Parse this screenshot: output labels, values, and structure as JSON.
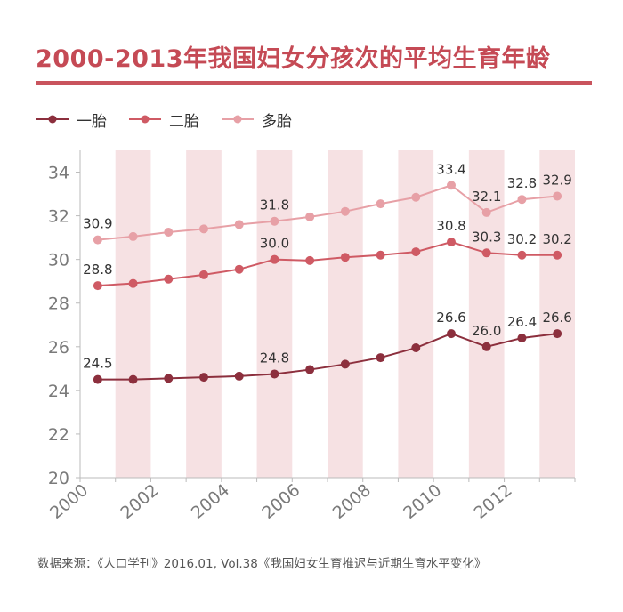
{
  "title": "2000-2013年我国妇女分孩次的平均生育年龄",
  "source": "数据来源：《人口学刊》2016.01, Vol.38《我国妇女生育推迟与近期生育水平变化》",
  "colors": {
    "title": "#c54a55",
    "band": "#f6e1e3",
    "first": "#8c2f3d",
    "second": "#cf5a64",
    "third": "#e7a0a6",
    "axis": "#bbbbbb",
    "tick": "#7a7a7a"
  },
  "chart_data": {
    "type": "line",
    "title": "2000-2013年我国妇女分孩次的平均生育年龄",
    "xlabel": "",
    "ylabel": "",
    "x": [
      2000,
      2001,
      2002,
      2003,
      2004,
      2005,
      2006,
      2007,
      2008,
      2009,
      2010,
      2011,
      2012,
      2013
    ],
    "x_tick_labels": [
      "2000",
      "2002",
      "2004",
      "2006",
      "2008",
      "2010",
      "2012"
    ],
    "x_tick_values": [
      2000,
      2002,
      2004,
      2006,
      2008,
      2010,
      2012
    ],
    "y_ticks": [
      20,
      22,
      24,
      26,
      28,
      30,
      32,
      34
    ],
    "ylim": [
      20,
      35
    ],
    "legend_position": "top-left",
    "shaded_years": [
      2001,
      2003,
      2005,
      2007,
      2009,
      2011,
      2013
    ],
    "series": [
      {
        "name": "一胎",
        "color_key": "first",
        "values": [
          24.5,
          24.5,
          24.55,
          24.6,
          24.65,
          24.75,
          24.95,
          25.2,
          25.5,
          25.95,
          26.6,
          26.0,
          26.4,
          26.6
        ],
        "labels": [
          {
            "year": 2000,
            "text": "24.5"
          },
          {
            "year": 2005,
            "text": "24.8"
          },
          {
            "year": 2010,
            "text": "26.6"
          },
          {
            "year": 2011,
            "text": "26.0"
          },
          {
            "year": 2012,
            "text": "26.4"
          },
          {
            "year": 2013,
            "text": "26.6"
          }
        ]
      },
      {
        "name": "二胎",
        "color_key": "second",
        "values": [
          28.8,
          28.9,
          29.1,
          29.3,
          29.55,
          30.0,
          29.95,
          30.1,
          30.2,
          30.35,
          30.8,
          30.3,
          30.2,
          30.2
        ],
        "labels": [
          {
            "year": 2000,
            "text": "28.8"
          },
          {
            "year": 2005,
            "text": "30.0"
          },
          {
            "year": 2010,
            "text": "30.8"
          },
          {
            "year": 2011,
            "text": "30.3"
          },
          {
            "year": 2012,
            "text": "30.2"
          },
          {
            "year": 2013,
            "text": "30.2"
          }
        ]
      },
      {
        "name": "多胎",
        "color_key": "third",
        "values": [
          30.9,
          31.05,
          31.25,
          31.4,
          31.6,
          31.75,
          31.95,
          32.2,
          32.55,
          32.85,
          33.4,
          32.15,
          32.75,
          32.9
        ],
        "labels": [
          {
            "year": 2000,
            "text": "30.9"
          },
          {
            "year": 2005,
            "text": "31.8"
          },
          {
            "year": 2010,
            "text": "33.4"
          },
          {
            "year": 2011,
            "text": "32.1"
          },
          {
            "year": 2012,
            "text": "32.8"
          },
          {
            "year": 2013,
            "text": "32.9"
          }
        ]
      }
    ]
  }
}
